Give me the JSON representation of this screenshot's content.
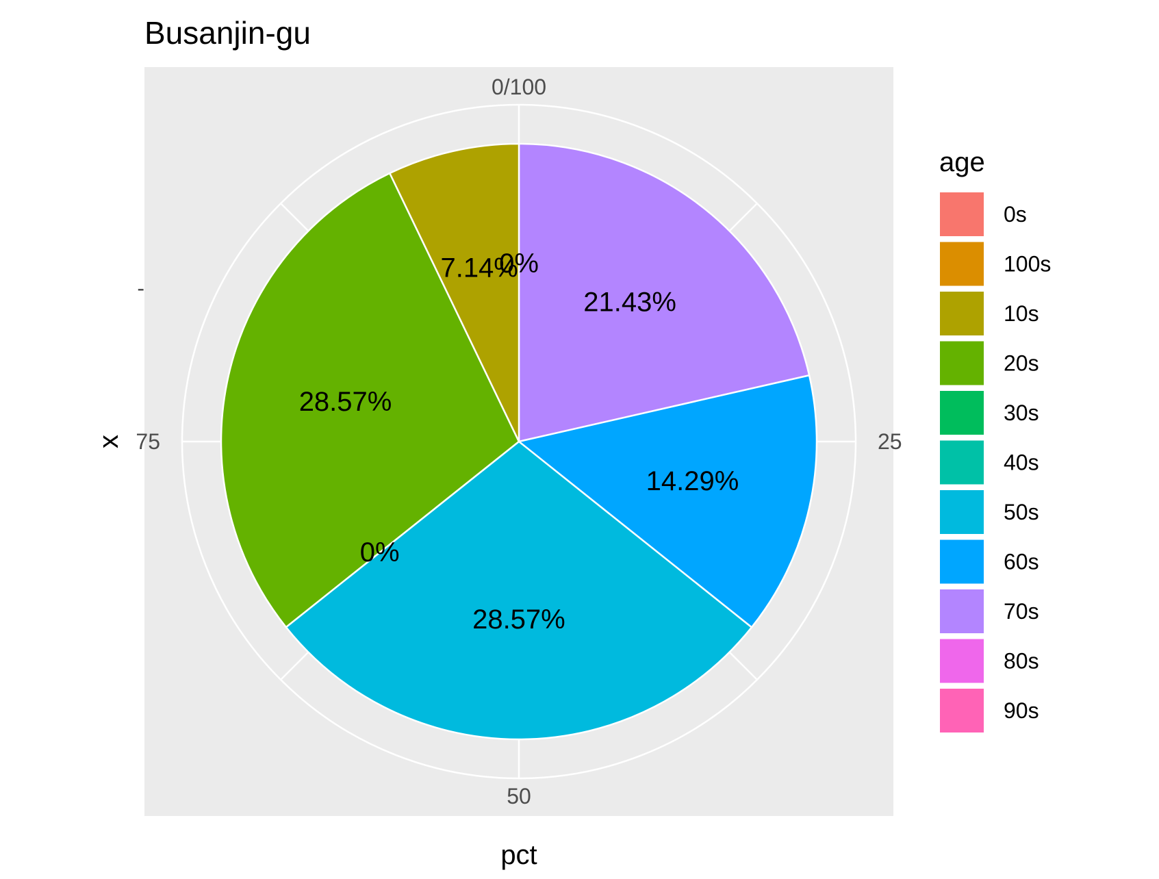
{
  "chart_data": {
    "type": "pie",
    "title": "Busanjin-gu",
    "xlabel": "pct",
    "ylabel": "x",
    "y_tick_labels": [
      "-"
    ],
    "angular_ticks": [
      {
        "value": 0,
        "label": "0/100"
      },
      {
        "value": 25,
        "label": "25"
      },
      {
        "value": 50,
        "label": "50"
      },
      {
        "value": 75,
        "label": "75"
      }
    ],
    "legend_title": "age",
    "legend_position": "right",
    "slices": [
      {
        "category": "0s",
        "value": 0,
        "label": "",
        "color": "#F8766D"
      },
      {
        "category": "100s",
        "value": 0,
        "label": "",
        "color": "#DB8E00"
      },
      {
        "category": "10s",
        "value": 7.14,
        "label": "7.14%",
        "color": "#AEA200"
      },
      {
        "category": "20s",
        "value": 28.57,
        "label": "28.57%",
        "color": "#64B200"
      },
      {
        "category": "30s",
        "value": 0,
        "label": "0%",
        "color": "#00BD5C"
      },
      {
        "category": "40s",
        "value": 0,
        "label": "",
        "color": "#00C1A7"
      },
      {
        "category": "50s",
        "value": 28.57,
        "label": "28.57%",
        "color": "#00BADE"
      },
      {
        "category": "60s",
        "value": 14.29,
        "label": "14.29%",
        "color": "#00A6FF"
      },
      {
        "category": "70s",
        "value": 21.43,
        "label": "21.43%",
        "color": "#B385FF"
      },
      {
        "category": "80s",
        "value": 0,
        "label": "",
        "color": "#EF67EB"
      },
      {
        "category": "90s",
        "value": 0,
        "label": "0%",
        "color": "#FF63B6"
      }
    ]
  }
}
